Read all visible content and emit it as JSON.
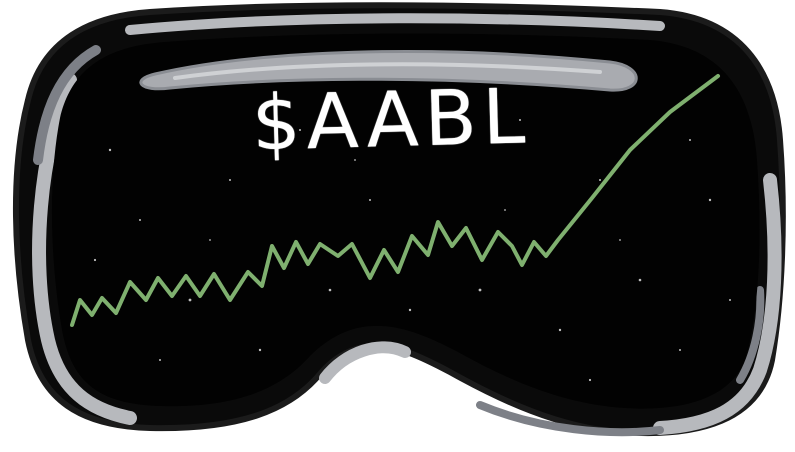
{
  "ticker": "$AABL",
  "icons": [
    "vision-headset-illustration",
    "stock-trend-line"
  ],
  "colors": {
    "lens": "#020202",
    "rim_light": "#b7b9bd",
    "rim_dark": "#7d8087",
    "outline": "#1b1b1b",
    "line": "#7fb06f",
    "text": "#ffffff",
    "background": "#ffffff"
  }
}
